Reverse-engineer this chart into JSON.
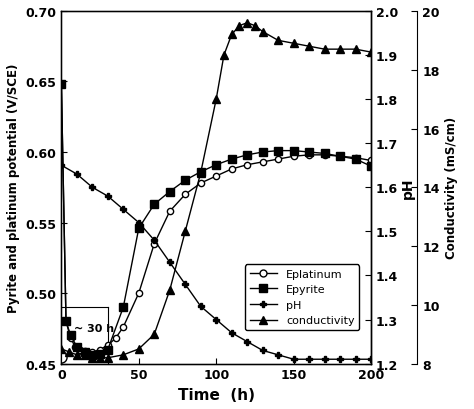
{
  "xlabel": "Time  (h)",
  "ylabel_left": "Pyrite and platinum potential (V/SCE)",
  "ylabel_right_pH": "pH",
  "ylabel_right_cond": "Conductivity (mS/cm)",
  "xlim": [
    0,
    200
  ],
  "ylim_left": [
    0.45,
    0.7
  ],
  "ylim_pH": [
    1.2,
    2.0
  ],
  "ylim_cond": [
    8,
    20
  ],
  "xticks": [
    0,
    50,
    100,
    150,
    200
  ],
  "yticks_left": [
    0.45,
    0.5,
    0.55,
    0.6,
    0.65,
    0.7
  ],
  "yticks_pH": [
    1.2,
    1.3,
    1.4,
    1.5,
    1.6,
    1.7,
    1.8,
    1.9,
    2.0
  ],
  "yticks_cond": [
    8,
    10,
    12,
    14,
    16,
    18,
    20
  ],
  "eplatinum_x": [
    0,
    3,
    6,
    9,
    12,
    15,
    20,
    25,
    30,
    35,
    40,
    50,
    60,
    70,
    80,
    90,
    100,
    110,
    120,
    130,
    140,
    150,
    160,
    170,
    180,
    190,
    200
  ],
  "eplatinum_y": [
    0.648,
    0.48,
    0.468,
    0.462,
    0.46,
    0.459,
    0.458,
    0.46,
    0.463,
    0.468,
    0.476,
    0.5,
    0.535,
    0.558,
    0.57,
    0.578,
    0.583,
    0.588,
    0.591,
    0.593,
    0.595,
    0.597,
    0.598,
    0.598,
    0.597,
    0.596,
    0.594
  ],
  "epyrite_x": [
    0,
    3,
    6,
    10,
    15,
    20,
    25,
    30,
    40,
    50,
    60,
    70,
    80,
    90,
    100,
    110,
    120,
    130,
    140,
    150,
    160,
    170,
    180,
    190,
    200
  ],
  "epyrite_y": [
    0.648,
    0.48,
    0.47,
    0.462,
    0.458,
    0.456,
    0.457,
    0.46,
    0.49,
    0.546,
    0.563,
    0.572,
    0.58,
    0.586,
    0.591,
    0.595,
    0.598,
    0.6,
    0.601,
    0.601,
    0.6,
    0.599,
    0.597,
    0.595,
    0.59
  ],
  "pH_x": [
    0,
    10,
    20,
    30,
    40,
    50,
    60,
    70,
    80,
    90,
    100,
    110,
    120,
    130,
    140,
    150,
    160,
    170,
    180,
    190,
    200
  ],
  "pH_y": [
    1.65,
    1.63,
    1.6,
    1.58,
    1.55,
    1.52,
    1.48,
    1.43,
    1.38,
    1.33,
    1.3,
    1.27,
    1.25,
    1.23,
    1.22,
    1.21,
    1.21,
    1.21,
    1.21,
    1.21,
    1.21
  ],
  "cond_x": [
    0,
    5,
    10,
    15,
    20,
    25,
    30,
    40,
    50,
    60,
    70,
    80,
    90,
    100,
    105,
    110,
    115,
    120,
    125,
    130,
    140,
    150,
    160,
    170,
    180,
    190,
    200
  ],
  "cond_y": [
    8.5,
    8.4,
    8.3,
    8.3,
    8.2,
    8.2,
    8.2,
    8.3,
    8.5,
    9.0,
    10.5,
    12.5,
    14.5,
    17.0,
    18.5,
    19.2,
    19.5,
    19.6,
    19.5,
    19.3,
    19.0,
    18.9,
    18.8,
    18.7,
    18.7,
    18.7,
    18.6
  ],
  "annotation_text": "~ 30 h",
  "bg_color": "#ffffff"
}
